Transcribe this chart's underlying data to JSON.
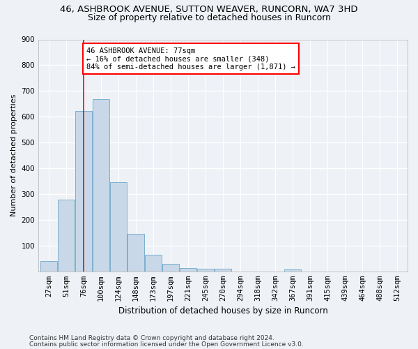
{
  "title_line1": "46, ASHBROOK AVENUE, SUTTON WEAVER, RUNCORN, WA7 3HD",
  "title_line2": "Size of property relative to detached houses in Runcorn",
  "xlabel": "Distribution of detached houses by size in Runcorn",
  "ylabel": "Number of detached properties",
  "bin_labels": [
    "27sqm",
    "51sqm",
    "76sqm",
    "100sqm",
    "124sqm",
    "148sqm",
    "173sqm",
    "197sqm",
    "221sqm",
    "245sqm",
    "270sqm",
    "294sqm",
    "318sqm",
    "342sqm",
    "367sqm",
    "391sqm",
    "415sqm",
    "439sqm",
    "464sqm",
    "488sqm",
    "512sqm"
  ],
  "bar_heights": [
    40,
    278,
    622,
    668,
    345,
    147,
    65,
    28,
    14,
    11,
    10,
    0,
    0,
    0,
    8,
    0,
    0,
    0,
    0,
    0,
    0
  ],
  "bar_color": "#c8d8e8",
  "bar_edge_color": "#7ab0d0",
  "vline_bin_index": 2,
  "annotation_text": "46 ASHBROOK AVENUE: 77sqm\n← 16% of detached houses are smaller (348)\n84% of semi-detached houses are larger (1,871) →",
  "annotation_box_color": "white",
  "annotation_box_edge_color": "red",
  "vline_color": "red",
  "ylim": [
    0,
    900
  ],
  "yticks": [
    0,
    100,
    200,
    300,
    400,
    500,
    600,
    700,
    800,
    900
  ],
  "footnote1": "Contains HM Land Registry data © Crown copyright and database right 2024.",
  "footnote2": "Contains public sector information licensed under the Open Government Licence v3.0.",
  "bg_color": "#eef2f7",
  "grid_color": "#ffffff",
  "title1_fontsize": 9.5,
  "title2_fontsize": 9,
  "xlabel_fontsize": 8.5,
  "ylabel_fontsize": 8,
  "tick_fontsize": 7.5,
  "annotation_fontsize": 7.5,
  "footnote_fontsize": 6.5
}
